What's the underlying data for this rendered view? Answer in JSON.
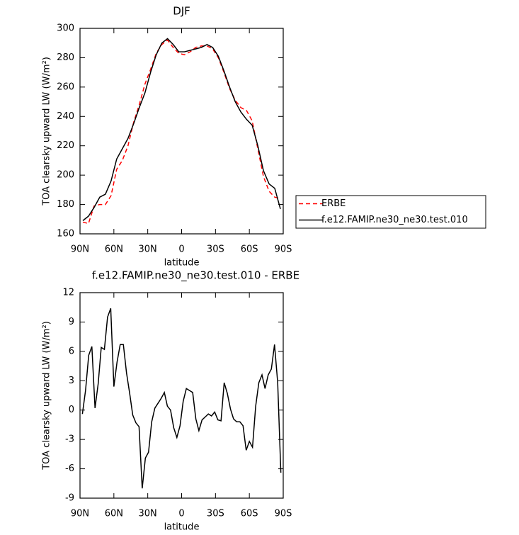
{
  "chart_data": [
    {
      "type": "line",
      "title": "DJF",
      "x_label": "latitude",
      "y_label": "TOA clearsky upward LW (W/m²)",
      "x": [
        87.5,
        82.5,
        77.5,
        72.5,
        67.5,
        62.5,
        57.5,
        52.5,
        47.5,
        42.5,
        37.5,
        32.5,
        27.5,
        22.5,
        17.5,
        12.5,
        7.5,
        2.5,
        -2.5,
        -7.5,
        -12.5,
        -17.5,
        -22.5,
        -27.5,
        -32.5,
        -37.5,
        -42.5,
        -47.5,
        -52.5,
        -57.5,
        -62.5,
        -67.5,
        -72.5,
        -77.5,
        -82.5,
        -87.5
      ],
      "series": [
        {
          "name": "ERBE",
          "color": "#ff0000",
          "dashed": true,
          "values": [
            168,
            167,
            179,
            180,
            180,
            186,
            204,
            210,
            220,
            236,
            248,
            262,
            272,
            283,
            289,
            292,
            287,
            283,
            282,
            284,
            287,
            288,
            288,
            286,
            280,
            270,
            259,
            251,
            246,
            244,
            237,
            218,
            199,
            189,
            185,
            184
          ]
        },
        {
          "name": "f.e12.FAMIP.ne30_ne30.test.010",
          "color": "#000000",
          "dashed": false,
          "values": [
            169,
            172,
            178,
            185,
            187,
            196,
            211,
            218,
            225,
            235,
            246,
            256,
            270,
            282,
            290,
            293,
            289,
            284,
            284,
            285,
            286,
            287,
            289,
            287,
            281,
            271,
            260,
            250,
            243,
            238,
            234,
            220,
            203,
            194,
            191,
            177
          ]
        }
      ],
      "xlim": [
        90,
        -90
      ],
      "xticks": [
        {
          "value": 90,
          "label": "90N"
        },
        {
          "value": 60,
          "label": "60N"
        },
        {
          "value": 30,
          "label": "30N"
        },
        0,
        {
          "value": -30,
          "label": "30S"
        },
        {
          "value": -60,
          "label": "60S"
        },
        {
          "value": -90,
          "label": "90S"
        }
      ],
      "ylim": [
        160,
        300
      ],
      "yticks": [
        160,
        180,
        200,
        220,
        240,
        260,
        280,
        300
      ],
      "legend": "right"
    },
    {
      "type": "line",
      "title": "f.e12.FAMIP.ne30_ne30.test.010 - ERBE",
      "x_label": "latitude",
      "y_label": "TOA clearsky upward LW (W/m²)",
      "x": [
        87.9,
        85.1,
        82.3,
        79.5,
        76.7,
        73.9,
        71.2,
        68.4,
        65.6,
        62.8,
        60.0,
        57.2,
        54.4,
        51.6,
        48.8,
        46.0,
        43.3,
        40.5,
        37.7,
        34.9,
        32.1,
        29.3,
        26.5,
        23.7,
        20.9,
        18.1,
        15.3,
        12.6,
        9.8,
        7.0,
        4.2,
        1.4,
        -1.4,
        -4.2,
        -7.0,
        -9.8,
        -12.6,
        -15.3,
        -18.1,
        -20.9,
        -23.7,
        -26.5,
        -29.3,
        -32.1,
        -34.9,
        -37.7,
        -40.5,
        -43.3,
        -46.0,
        -48.8,
        -51.6,
        -54.4,
        -57.2,
        -60.0,
        -62.8,
        -65.6,
        -68.4,
        -71.2,
        -73.9,
        -76.7,
        -79.5,
        -82.3,
        -85.1,
        -87.9
      ],
      "values": [
        -0.4,
        2.0,
        5.6,
        6.5,
        0.2,
        2.7,
        6.4,
        6.2,
        9.5,
        10.4,
        2.4,
        4.9,
        6.7,
        6.7,
        3.8,
        1.7,
        -0.5,
        -1.3,
        -1.7,
        -8.0,
        -4.9,
        -4.3,
        -1.2,
        0.2,
        0.7,
        1.2,
        1.8,
        0.4,
        0.0,
        -1.8,
        -2.8,
        -1.6,
        0.9,
        2.2,
        2.0,
        1.8,
        -0.9,
        -2.1,
        -1.0,
        -0.7,
        -0.4,
        -0.6,
        -0.2,
        -1.0,
        -1.1,
        2.8,
        1.7,
        0.1,
        -0.9,
        -1.2,
        -1.2,
        -1.6,
        -4.1,
        -3.2,
        -3.8,
        0.4,
        2.8,
        3.6,
        2.2,
        3.6,
        4.2,
        6.7,
        2.8,
        -6.4
      ],
      "color": "#000000",
      "xlim": [
        90,
        -90
      ],
      "xticks": [
        {
          "value": 90,
          "label": "90N"
        },
        {
          "value": 60,
          "label": "60N"
        },
        {
          "value": 30,
          "label": "30N"
        },
        0,
        {
          "value": -30,
          "label": "30S"
        },
        {
          "value": -60,
          "label": "60S"
        },
        {
          "value": -90,
          "label": "90S"
        }
      ],
      "ylim": [
        -9,
        12
      ],
      "yticks": [
        -9,
        -6,
        -3,
        0,
        3,
        6,
        9,
        12
      ]
    }
  ]
}
